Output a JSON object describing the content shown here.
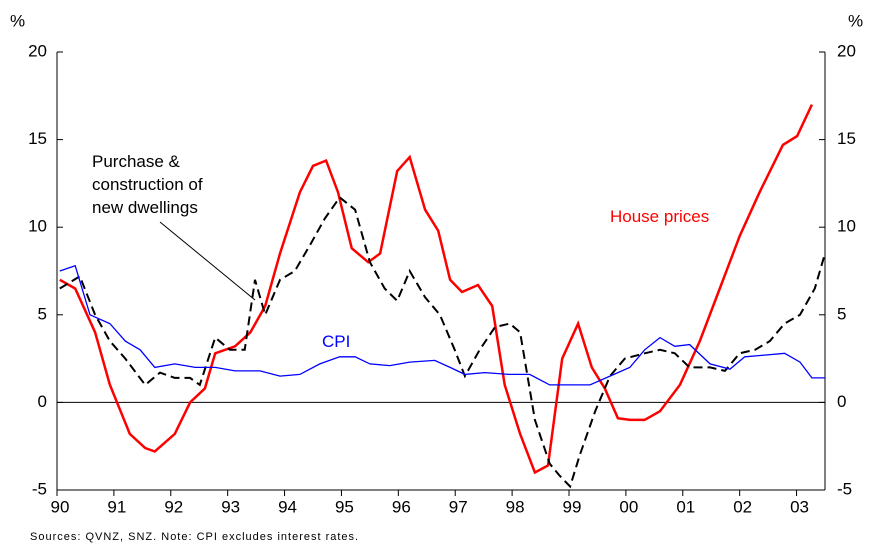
{
  "chart_data": {
    "type": "line",
    "y_unit_left": "%",
    "y_unit_right": "%",
    "xlim": [
      1990,
      2003.5
    ],
    "xticks": [
      {
        "value": 1990,
        "label": "90"
      },
      {
        "value": 1991,
        "label": "91"
      },
      {
        "value": 1992,
        "label": "92"
      },
      {
        "value": 1993,
        "label": "93"
      },
      {
        "value": 1994,
        "label": "94"
      },
      {
        "value": 1995,
        "label": "95"
      },
      {
        "value": 1996,
        "label": "96"
      },
      {
        "value": 1997,
        "label": "97"
      },
      {
        "value": 1998,
        "label": "98"
      },
      {
        "value": 1999,
        "label": "99"
      },
      {
        "value": 2000,
        "label": "00"
      },
      {
        "value": 2001,
        "label": "01"
      },
      {
        "value": 2002,
        "label": "02"
      },
      {
        "value": 2003,
        "label": "03"
      }
    ],
    "ylim": [
      -5,
      20
    ],
    "yticks": [
      -5,
      0,
      5,
      10,
      15,
      20
    ],
    "y2lim": [
      -5,
      20
    ],
    "y2ticks": [
      -5,
      0,
      5,
      10,
      15,
      20
    ],
    "series": [
      {
        "name": "House prices",
        "color": "#ff0000",
        "x": [
          1990.05,
          1990.32,
          1990.67,
          1990.93,
          1991.28,
          1991.55,
          1991.72,
          1992.07,
          1992.34,
          1992.6,
          1992.78,
          1993.13,
          1993.4,
          1993.66,
          1993.92,
          1994.27,
          1994.5,
          1994.73,
          1994.94,
          1995.18,
          1995.47,
          1995.68,
          1995.98,
          1996.2,
          1996.47,
          1996.7,
          1996.91,
          1997.12,
          1997.4,
          1997.65,
          1997.87,
          1998.14,
          1998.4,
          1998.63,
          1998.88,
          1999.16,
          1999.4,
          1999.63,
          1999.86,
          2000.07,
          2000.33,
          2000.6,
          2000.95,
          2001.3,
          2001.65,
          2002.0,
          2002.35,
          2002.76,
          2003.01,
          2003.27
        ],
        "values": [
          7.0,
          6.5,
          4,
          1,
          -1.8,
          -2.6,
          -2.8,
          -1.8,
          0,
          0.8,
          2.8,
          3.2,
          4,
          5.5,
          8.5,
          12,
          13.5,
          13.8,
          12,
          8.8,
          8,
          8.5,
          13.2,
          14,
          11,
          9.8,
          7,
          6.3,
          6.7,
          5.5,
          1,
          -1.8,
          -4,
          -3.6,
          2.5,
          4.5,
          2,
          0.8,
          -0.9,
          -1,
          -1,
          -0.5,
          1,
          3.5,
          6.5,
          9.5,
          12,
          14.7,
          15.2,
          17
        ]
      },
      {
        "name": "Purchase & construction of new dwellings",
        "color": "#000000",
        "x": [
          1990.05,
          1990.4,
          1990.67,
          1990.93,
          1991.2,
          1991.55,
          1991.81,
          1992.07,
          1992.34,
          1992.51,
          1992.78,
          1993.04,
          1993.3,
          1993.48,
          1993.66,
          1993.92,
          1994.18,
          1994.45,
          1994.71,
          1994.97,
          1995.24,
          1995.5,
          1995.76,
          1995.98,
          1996.2,
          1996.47,
          1996.73,
          1996.99,
          1997.17,
          1997.43,
          1997.7,
          1997.96,
          1998.14,
          1998.4,
          1998.66,
          1998.84,
          1999.02,
          1999.19,
          1999.46,
          1999.72,
          1999.98,
          2000.33,
          2000.6,
          2000.86,
          2001.12,
          2001.48,
          2001.74,
          2002.0,
          2002.27,
          2002.53,
          2002.79,
          2003.06,
          2003.32,
          2003.5
        ],
        "values": [
          6.5,
          7.2,
          5,
          3.5,
          2.5,
          1,
          1.7,
          1.4,
          1.4,
          1,
          3.7,
          3,
          3,
          7,
          5,
          7,
          7.5,
          9,
          10.5,
          11.7,
          11,
          8,
          6.5,
          5.8,
          7.5,
          6,
          5,
          3,
          1.5,
          3,
          4.3,
          4.5,
          4,
          -1,
          -3.5,
          -4.2,
          -4.8,
          -3,
          -0.5,
          1.5,
          2.5,
          2.8,
          3,
          2.8,
          2,
          2,
          1.8,
          2.8,
          3,
          3.5,
          4.5,
          5,
          6.5,
          8.5
        ]
      },
      {
        "name": "CPI",
        "color": "#0000ff",
        "x": [
          1990.05,
          1990.32,
          1990.58,
          1990.93,
          1991.2,
          1991.46,
          1991.72,
          1992.07,
          1992.43,
          1992.78,
          1993.13,
          1993.57,
          1993.92,
          1994.27,
          1994.62,
          1994.97,
          1995.24,
          1995.5,
          1995.85,
          1996.2,
          1996.64,
          1996.91,
          1997.17,
          1997.52,
          1997.96,
          1998.31,
          1998.66,
          1999.02,
          1999.37,
          1999.72,
          2000.07,
          2000.33,
          2000.6,
          2000.86,
          2001.12,
          2001.48,
          2001.83,
          2002.09,
          2002.44,
          2002.79,
          2003.06,
          2003.27,
          2003.5
        ],
        "values": [
          7.5,
          7.8,
          5,
          4.5,
          3.5,
          3,
          2,
          2.2,
          2,
          2,
          1.8,
          1.8,
          1.5,
          1.6,
          2.2,
          2.6,
          2.6,
          2.2,
          2.1,
          2.3,
          2.4,
          2,
          1.6,
          1.7,
          1.6,
          1.6,
          1,
          1,
          1,
          1.5,
          2,
          3,
          3.7,
          3.2,
          3.3,
          2.2,
          1.9,
          2.6,
          2.7,
          2.8,
          2.3,
          1.4,
          1.4
        ]
      }
    ],
    "source": "Sources: QVNZ, SNZ. Note: CPI excludes interest rates."
  }
}
